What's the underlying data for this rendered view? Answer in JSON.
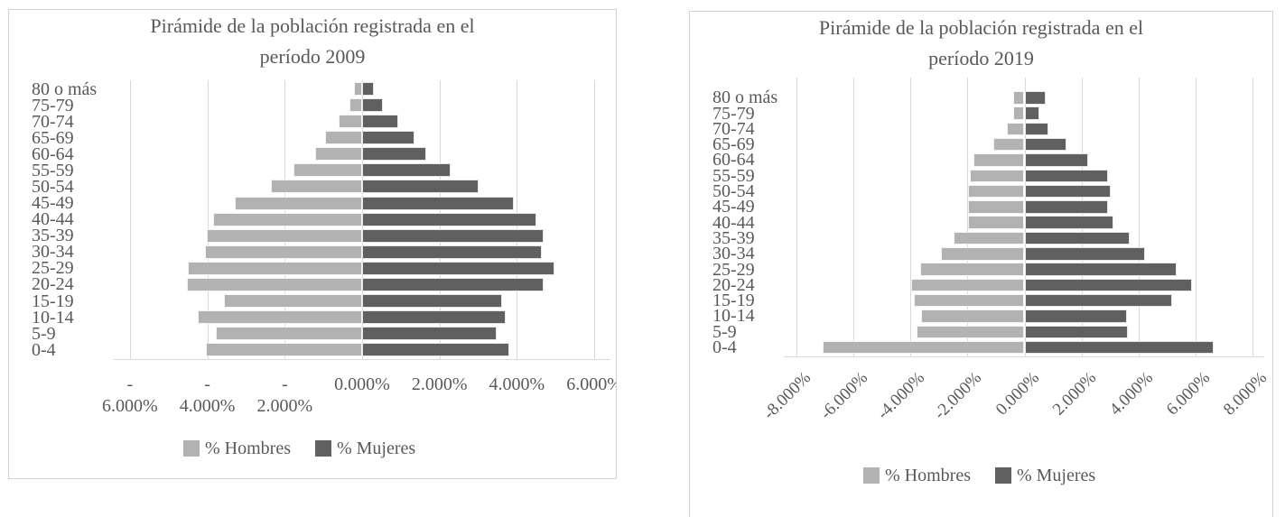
{
  "page": {
    "background": "#ffffff"
  },
  "colors": {
    "bar_hombres": "#b2b2b2",
    "bar_mujeres": "#606060",
    "gridline": "#d9d9d9",
    "chart_border": "#d2d2d2",
    "text": "#595959"
  },
  "chart_data": [
    {
      "type": "bar",
      "subtype": "population-pyramid",
      "title": "Pirámide de la población registrada en el período 2009",
      "title_line1": "Pirámide de la población registrada en el",
      "title_line2": "período 2009",
      "categories": [
        "80 o más",
        "75-79",
        "70-74",
        "65-69",
        "60-64",
        "55-59",
        "50-54",
        "45-49",
        "40-44",
        "35-39",
        "30-34",
        "25-29",
        "20-24",
        "15-19",
        "10-14",
        "5-9",
        "0-4"
      ],
      "series": [
        {
          "name": "% Hombres",
          "side": "left",
          "color": "#b2b2b2",
          "values": [
            -0.21,
            -0.33,
            -0.6,
            -0.95,
            -1.22,
            -1.77,
            -2.35,
            -3.3,
            -3.86,
            -4.01,
            -4.07,
            -4.51,
            -4.53,
            -3.58,
            -4.24,
            -3.78,
            -4.03
          ]
        },
        {
          "name": "% Mujeres",
          "side": "right",
          "color": "#606060",
          "values": [
            0.31,
            0.53,
            0.93,
            1.35,
            1.65,
            2.29,
            3.0,
            3.92,
            4.5,
            4.7,
            4.64,
            4.96,
            4.7,
            3.62,
            3.71,
            3.48,
            3.81
          ]
        }
      ],
      "x_axis": {
        "min": -6,
        "max": 6,
        "step": 2,
        "unit": "%",
        "tick_values": [
          -6,
          -4,
          -2,
          0,
          2,
          4,
          6
        ],
        "tick_labels_line1": [
          "-",
          "-",
          "-",
          "0.000%",
          "2.000%",
          "4.000%",
          "6.000%"
        ],
        "tick_labels_line2": [
          "6.000%",
          "4.000%",
          "2.000%",
          "",
          "",
          "",
          ""
        ],
        "label_rotation": 0
      },
      "grid": true,
      "legend_position": "bottom",
      "xlabel": "",
      "ylabel": ""
    },
    {
      "type": "bar",
      "subtype": "population-pyramid",
      "title": "Pirámide de la población registrada en el período 2019",
      "title_line1": "Pirámide de la población registrada en el",
      "title_line2": "período 2019",
      "categories": [
        "80 o más",
        "75-79",
        "70-74",
        "65-69",
        "60-64",
        "55-59",
        "50-54",
        "45-49",
        "40-44",
        "35-39",
        "30-34",
        "25-29",
        "20-24",
        "15-19",
        "10-14",
        "5-9",
        "0-4"
      ],
      "series": [
        {
          "name": "% Hombres",
          "side": "left",
          "color": "#b2b2b2",
          "values": [
            -0.39,
            -0.4,
            -0.63,
            -1.1,
            -1.79,
            -1.92,
            -1.98,
            -1.98,
            -1.98,
            -2.48,
            -2.93,
            -3.66,
            -3.98,
            -3.87,
            -3.64,
            -3.8,
            -7.09
          ]
        },
        {
          "name": "% Mujeres",
          "side": "right",
          "color": "#606060",
          "values": [
            0.74,
            0.53,
            0.84,
            1.46,
            2.22,
            2.93,
            3.04,
            2.93,
            3.11,
            3.69,
            4.22,
            5.33,
            5.89,
            5.17,
            3.59,
            3.64,
            6.65
          ]
        }
      ],
      "x_axis": {
        "min": -8,
        "max": 8,
        "step": 2,
        "unit": "%",
        "tick_values": [
          -8,
          -6,
          -4,
          -2,
          0,
          2,
          4,
          6,
          8
        ],
        "tick_labels": [
          "-8.000%",
          "-6.000%",
          "-4.000%",
          "-2.000%",
          "0.000%",
          "2.000%",
          "4.000%",
          "6.000%",
          "8.000%"
        ],
        "label_rotation": 45
      },
      "grid": true,
      "legend_position": "bottom",
      "xlabel": "",
      "ylabel": ""
    }
  ]
}
